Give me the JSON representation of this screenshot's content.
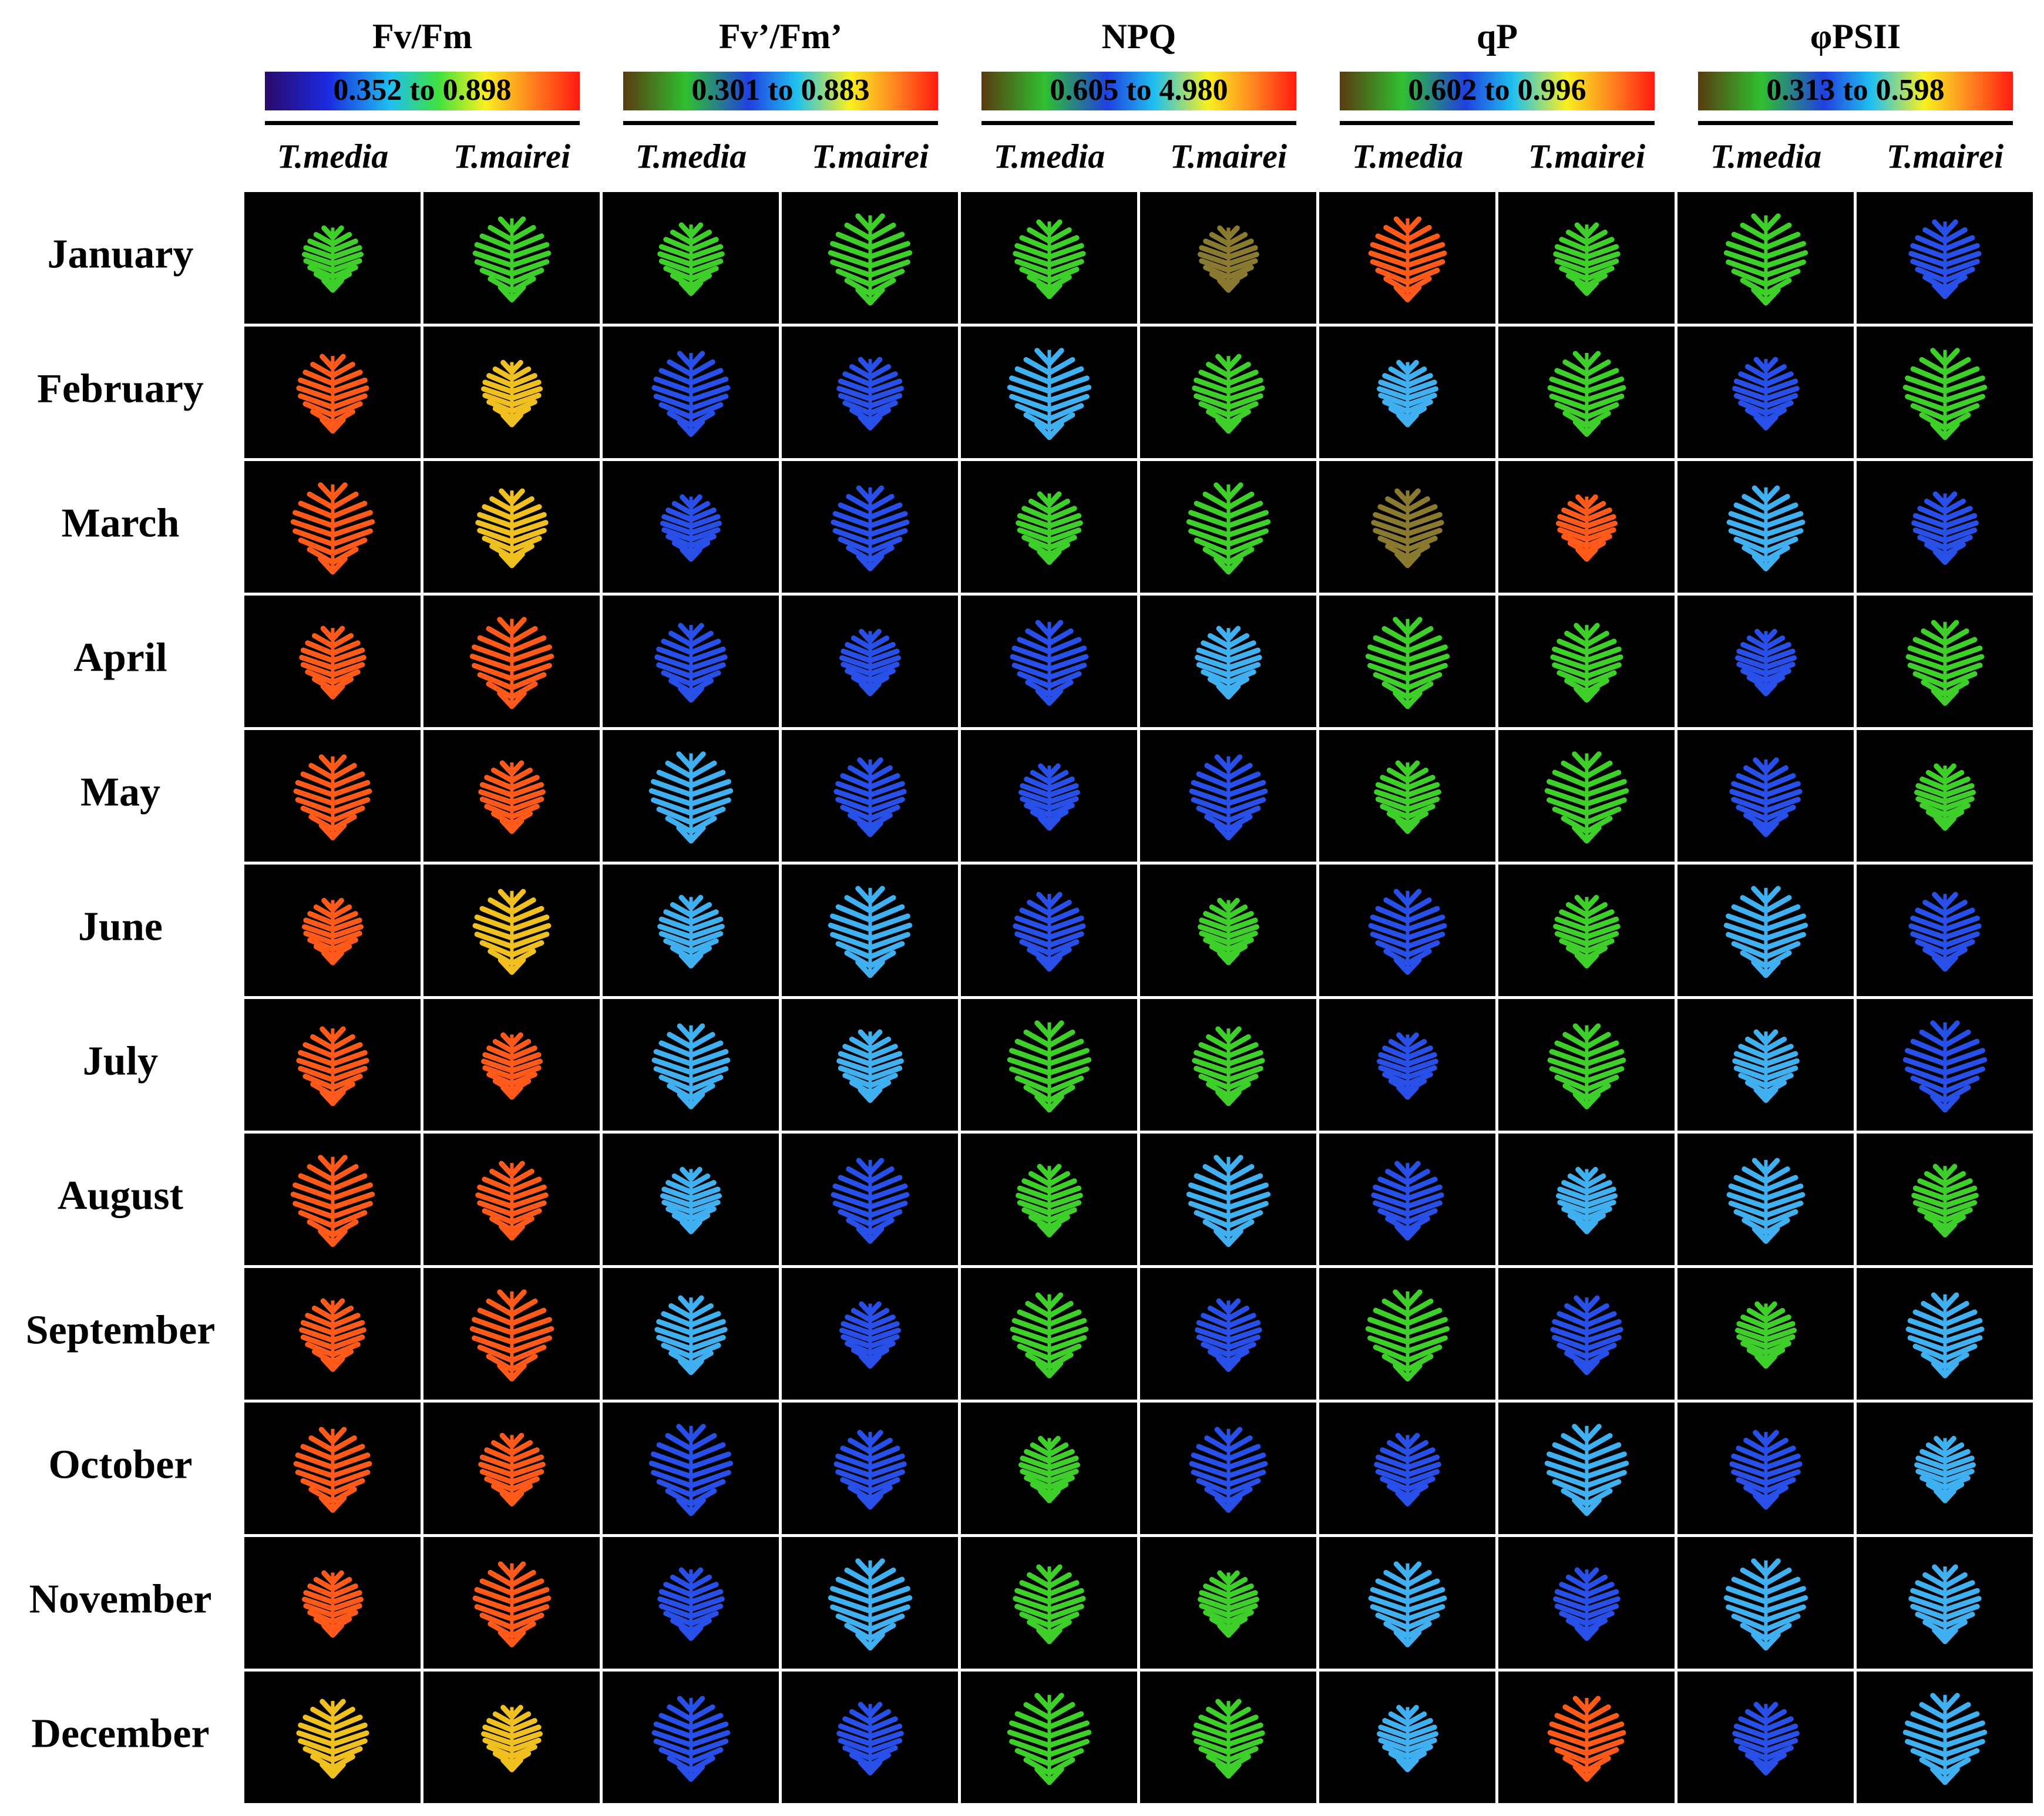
{
  "parameters": [
    {
      "name": "Fv/Fm",
      "range": "0.352 to 0.898"
    },
    {
      "name": "Fv’/Fm’",
      "range": "0.301 to 0.883"
    },
    {
      "name": "NPQ",
      "range": "0.605 to 4.980"
    },
    {
      "name": "qP",
      "range": "0.602 to 0.996"
    },
    {
      "name": "φPSII",
      "range": "0.313 to 0.598"
    }
  ],
  "species": [
    "T.media",
    "T.mairei"
  ],
  "months": [
    "January",
    "February",
    "March",
    "April",
    "May",
    "June",
    "July",
    "August",
    "September",
    "October",
    "November",
    "December"
  ]
}
